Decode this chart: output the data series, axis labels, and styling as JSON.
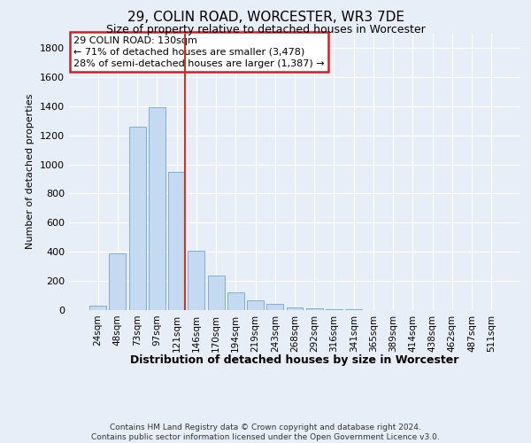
{
  "title": "29, COLIN ROAD, WORCESTER, WR3 7DE",
  "subtitle": "Size of property relative to detached houses in Worcester",
  "xlabel": "Distribution of detached houses by size in Worcester",
  "ylabel": "Number of detached properties",
  "categories": [
    "24sqm",
    "48sqm",
    "73sqm",
    "97sqm",
    "121sqm",
    "146sqm",
    "170sqm",
    "194sqm",
    "219sqm",
    "243sqm",
    "268sqm",
    "292sqm",
    "316sqm",
    "341sqm",
    "365sqm",
    "389sqm",
    "414sqm",
    "438sqm",
    "462sqm",
    "487sqm",
    "511sqm"
  ],
  "values": [
    28,
    390,
    1260,
    1395,
    950,
    410,
    235,
    120,
    65,
    42,
    20,
    15,
    8,
    5,
    3,
    2,
    1,
    0,
    0,
    0,
    0
  ],
  "bar_color": "#c5d9f0",
  "bar_edge_color": "#7bafd4",
  "background_color": "#e8eef7",
  "grid_color": "#ffffff",
  "vline_color": "#c0392b",
  "annotation_text_line1": "29 COLIN ROAD: 130sqm",
  "annotation_text_line2": "← 71% of detached houses are smaller (3,478)",
  "annotation_text_line3": "28% of semi-detached houses are larger (1,387) →",
  "annotation_box_color": "#cc2222",
  "ylim": [
    0,
    1900
  ],
  "yticks": [
    0,
    200,
    400,
    600,
    800,
    1000,
    1200,
    1400,
    1600,
    1800
  ],
  "footnote_line1": "Contains HM Land Registry data © Crown copyright and database right 2024.",
  "footnote_line2": "Contains public sector information licensed under the Open Government Licence v3.0.",
  "title_fontsize": 11,
  "subtitle_fontsize": 9
}
